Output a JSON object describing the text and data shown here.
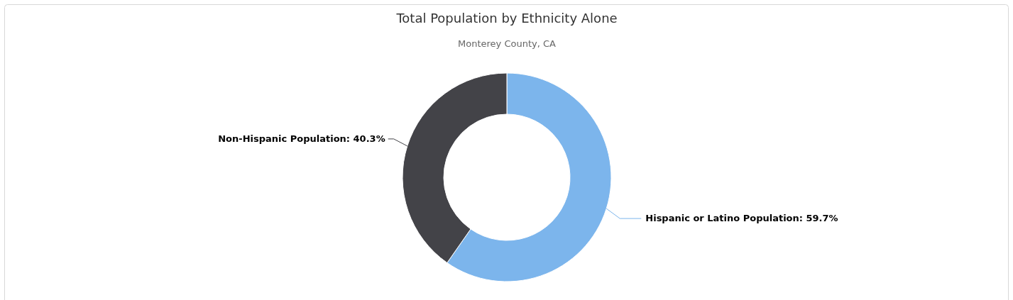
{
  "chart_data": {
    "type": "donut",
    "title": "Total Population by Ethnicity Alone",
    "subtitle": "Monterey County, CA",
    "categories": [
      "Hispanic or Latino Population",
      "Non-Hispanic Population"
    ],
    "values": [
      59.7,
      40.3
    ],
    "value_labels": [
      "59.7%",
      "40.3%"
    ],
    "colors": [
      "#7cb5ec",
      "#434348"
    ]
  }
}
